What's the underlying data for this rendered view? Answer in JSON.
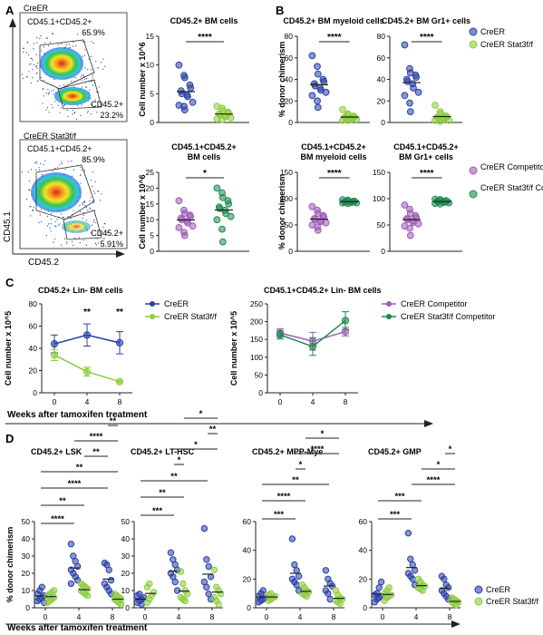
{
  "panels": {
    "A": "A",
    "B": "B",
    "C": "C",
    "D": "D"
  },
  "colors": {
    "creer": "#2940a8",
    "stat3": "#8ccc3c",
    "competitor_creer": "#9e5bb8",
    "competitor_stat3": "#1e8a4e"
  },
  "flow": {
    "x_axis_label": "CD45.2",
    "y_axis_label": "CD45.1",
    "plots": [
      {
        "title": "CreER",
        "gate_upper_label": "CD45.1+CD45.2+",
        "gate_upper_pct": "65.9%",
        "gate_lower_label": "CD45.2+",
        "gate_lower_pct": "23.2%"
      },
      {
        "title": "CreER Stat3f/f",
        "gate_upper_label": "CD45.1+CD45.2+",
        "gate_upper_pct": "85.9%",
        "gate_lower_label": "CD45.2+",
        "gate_lower_pct": "5.91%"
      }
    ]
  },
  "legends": {
    "B_top": [
      "CreER",
      "CreER Stat3f/f"
    ],
    "B_bottom": [
      "CreER Competitor",
      "CreER Stat3f/f Competitor"
    ],
    "C_left": [
      "CreER",
      "CreER Stat3f/f"
    ],
    "C_right": [
      "CreER Competitor",
      "CreER Stat3f/f Competitor"
    ],
    "D": [
      "CreER",
      "CreER Stat3f/f"
    ]
  },
  "panel_c_xlabel": "Weeks after tamoxifen treatment",
  "panel_d_xlabel": "Weeks after tamoxifen treatment",
  "chart_data": [
    {
      "id": "A1",
      "type": "scatter",
      "title": "CD45.2+ BM cells",
      "ylabel": "Cell number x 10^6",
      "ylim": [
        0,
        15
      ],
      "yticks": [
        0,
        5,
        10,
        15
      ],
      "categories": [
        "CreER",
        "CreER Stat3f/f"
      ],
      "series": [
        {
          "values": [
            10,
            8.2,
            7.8,
            6.5,
            6,
            5.5,
            5,
            4.8,
            4.5,
            3.5,
            3,
            2.8,
            2.2
          ]
        },
        {
          "values": [
            2.8,
            2.5,
            2,
            1.8,
            1.6,
            1.5,
            1.3,
            1.2,
            1,
            0.8,
            0.6,
            0.5
          ]
        }
      ],
      "significance": [
        "****"
      ]
    },
    {
      "id": "A2",
      "type": "scatter",
      "title": "CD45.1+CD45.2+ BM cells",
      "ylabel": "Cell number x 10^6",
      "ylim": [
        0,
        25
      ],
      "yticks": [
        0,
        5,
        10,
        15,
        20,
        25
      ],
      "categories": [
        "CreER Competitor",
        "CreER Stat3f/f Competitor"
      ],
      "series": [
        {
          "values": [
            16,
            13,
            12,
            11.5,
            11,
            10.5,
            10,
            9.5,
            9,
            8,
            7.5,
            6,
            5
          ]
        },
        {
          "values": [
            20,
            18.5,
            17,
            16,
            15,
            14,
            13.5,
            13,
            12,
            11,
            10,
            7,
            3
          ]
        }
      ],
      "significance": [
        "*"
      ]
    },
    {
      "id": "B1",
      "type": "scatter",
      "title": "CD45.2+ BM myeloid cells",
      "ylabel": "% donor chimerism",
      "ylim": [
        0,
        80
      ],
      "yticks": [
        0,
        20,
        40,
        60,
        80
      ],
      "categories": [
        "CreER",
        "CreER Stat3f/f"
      ],
      "series": [
        {
          "values": [
            62,
            52,
            45,
            40,
            38,
            36,
            34,
            32,
            30,
            28,
            25,
            20,
            14
          ]
        },
        {
          "values": [
            12,
            8,
            7,
            6,
            5,
            5,
            4,
            4,
            3,
            3,
            2,
            2
          ]
        }
      ],
      "significance": [
        "****"
      ]
    },
    {
      "id": "B2",
      "type": "scatter",
      "title": "CD45.2+ BM Gr1+ cells",
      "ylabel": "",
      "ylim": [
        0,
        80
      ],
      "yticks": [
        0,
        20,
        40,
        60,
        80
      ],
      "categories": [
        "CreER",
        "CreER Stat3f/f"
      ],
      "series": [
        {
          "values": [
            72,
            50,
            46,
            44,
            42,
            40,
            38,
            36,
            32,
            28,
            25,
            18,
            10
          ]
        },
        {
          "values": [
            16,
            10,
            8,
            6,
            5,
            5,
            4,
            4,
            3,
            2,
            2,
            1
          ]
        }
      ],
      "significance": [
        "****"
      ]
    },
    {
      "id": "B3",
      "type": "scatter",
      "title": "CD45.1+CD45.2+ BM myeloid cells",
      "ylabel": "% donor chimerism",
      "ylim": [
        0,
        150
      ],
      "yticks": [
        0,
        50,
        100,
        150
      ],
      "categories": [
        "CreER Competitor",
        "CreER Stat3f/f Competitor"
      ],
      "series": [
        {
          "values": [
            85,
            78,
            72,
            68,
            65,
            62,
            60,
            58,
            56,
            54,
            50,
            46,
            40
          ]
        },
        {
          "values": [
            98,
            97,
            96,
            95,
            95,
            94,
            94,
            93,
            93,
            92,
            92,
            91
          ]
        }
      ],
      "significance": [
        "****"
      ]
    },
    {
      "id": "B4",
      "type": "scatter",
      "title": "CD45.1+CD45.2+ BM Gr1+ cells",
      "ylabel": "",
      "ylim": [
        0,
        150
      ],
      "yticks": [
        0,
        50,
        100,
        150
      ],
      "categories": [
        "CreER Competitor",
        "CreER Stat3f/f Competitor"
      ],
      "series": [
        {
          "values": [
            88,
            80,
            72,
            68,
            64,
            62,
            60,
            58,
            55,
            52,
            48,
            44,
            30
          ]
        },
        {
          "values": [
            99,
            98,
            97,
            96,
            95,
            95,
            94,
            94,
            93,
            92,
            91,
            90
          ]
        }
      ],
      "significance": [
        "****"
      ]
    },
    {
      "id": "C1",
      "type": "line",
      "title": "CD45.2+ Lin- BM cells",
      "ylabel": "Cell number x 10^5",
      "xlabel": "",
      "ylim": [
        0,
        80
      ],
      "yticks": [
        0,
        20,
        40,
        60,
        80
      ],
      "x": [
        0,
        4,
        8
      ],
      "series": [
        {
          "name": "CreER",
          "values": [
            44,
            52,
            45
          ],
          "err": [
            8,
            10,
            10
          ]
        },
        {
          "name": "CreER Stat3f/f",
          "values": [
            34,
            19,
            10
          ],
          "err": [
            5,
            4,
            1
          ]
        }
      ],
      "significance": [
        "",
        "**",
        "**"
      ]
    },
    {
      "id": "C2",
      "type": "line",
      "title": "CD45.1+CD45.2+ Lin- BM cells",
      "ylabel": "Cell number x 10^5",
      "xlabel": "",
      "ylim": [
        0,
        250
      ],
      "yticks": [
        0,
        50,
        100,
        150,
        200,
        250
      ],
      "x": [
        0,
        4,
        8
      ],
      "series": [
        {
          "name": "CreER Competitor",
          "values": [
            168,
            145,
            172
          ],
          "err": [
            12,
            25,
            12
          ]
        },
        {
          "name": "CreER Stat3f/f Competitor",
          "values": [
            163,
            130,
            203
          ],
          "err": [
            12,
            25,
            25
          ]
        }
      ]
    },
    {
      "id": "D1",
      "type": "scatter",
      "title": "CD45.2+ LSK",
      "ylabel": "% donor chimerism",
      "ylim": [
        0,
        50
      ],
      "yticks": [
        0,
        10,
        20,
        30,
        40,
        50
      ],
      "x": [
        0,
        4,
        8
      ],
      "series": [
        {
          "name": "CreER",
          "values": [
            [
              4,
              5,
              6,
              7,
              8,
              10,
              12,
              3
            ],
            [
              37,
              30,
              27,
              24,
              22,
              20,
              18,
              16,
              14
            ],
            [
              26,
              25,
              22,
              16,
              14,
              12,
              10,
              8
            ]
          ]
        },
        {
          "name": "CreER Stat3f/f",
          "values": [
            [
              3,
              4,
              5,
              6,
              7,
              8,
              9,
              10
            ],
            [
              14,
              13,
              12,
              11,
              10,
              9,
              8,
              7
            ],
            [
              8,
              7,
              6,
              5,
              5,
              4,
              3,
              2
            ]
          ]
        }
      ],
      "significance": [
        "****",
        "**",
        "****",
        "**",
        "**",
        "****",
        "**"
      ]
    },
    {
      "id": "D2",
      "type": "scatter",
      "title": "CD45.2+ LT-HSC",
      "ylabel": "",
      "ylim": [
        0,
        50
      ],
      "yticks": [
        0,
        10,
        20,
        30,
        40,
        50
      ],
      "x": [
        0,
        4,
        8
      ],
      "series": [
        {
          "name": "CreER",
          "values": [
            [
              3,
              4,
              5,
              6,
              7,
              8,
              2
            ],
            [
              32,
              28,
              25,
              22,
              20,
              18,
              15,
              10
            ],
            [
              46,
              28,
              24,
              18,
              15,
              12,
              8,
              5
            ]
          ]
        },
        {
          "name": "CreER Stat3f/f",
          "values": [
            [
              3,
              5,
              7,
              9,
              12,
              14
            ],
            [
              21,
              14,
              10,
              8,
              6,
              5,
              4
            ],
            [
              22,
              12,
              10,
              8,
              6,
              4,
              2
            ]
          ]
        }
      ],
      "significance": [
        "***",
        "**",
        "**",
        "*",
        "*",
        "**",
        "*"
      ]
    },
    {
      "id": "D3",
      "type": "scatter",
      "title": "CD45.2+ MPP-Mye",
      "ylabel": "",
      "ylim": [
        0,
        60
      ],
      "yticks": [
        0,
        20,
        40,
        60
      ],
      "x": [
        0,
        4,
        8
      ],
      "series": [
        {
          "name": "CreER",
          "values": [
            [
              4,
              5,
              6,
              7,
              8,
              10,
              12
            ],
            [
              48,
              30,
              26,
              22,
              20,
              18,
              16,
              12
            ],
            [
              26,
              20,
              17,
              15,
              12,
              10,
              6
            ]
          ]
        },
        {
          "name": "CreER Stat3f/f",
          "values": [
            [
              5,
              6,
              7,
              8,
              9,
              10
            ],
            [
              16,
              14,
              12,
              11,
              10,
              9,
              8
            ],
            [
              12,
              9,
              7,
              6,
              5,
              4,
              3
            ]
          ]
        }
      ],
      "significance": [
        "***",
        "****",
        "**",
        "*",
        "****",
        "*"
      ]
    },
    {
      "id": "D4",
      "type": "scatter",
      "title": "CD45.2+ GMP",
      "ylabel": "",
      "ylim": [
        0,
        60
      ],
      "yticks": [
        0,
        20,
        40,
        60
      ],
      "x": [
        0,
        4,
        8
      ],
      "series": [
        {
          "name": "CreER",
          "values": [
            [
              4,
              6,
              7,
              8,
              9,
              10,
              14,
              18
            ],
            [
              52,
              34,
              30,
              26,
              24,
              22,
              20,
              16
            ],
            [
              22,
              20,
              16,
              14,
              12,
              10,
              8,
              6
            ]
          ]
        },
        {
          "name": "CreER Stat3f/f",
          "values": [
            [
              5,
              7,
              8,
              9,
              10,
              12,
              14
            ],
            [
              20,
              18,
              16,
              15,
              14,
              13,
              12
            ],
            [
              7,
              6,
              5,
              4,
              4,
              3,
              2
            ]
          ]
        }
      ],
      "significance": [
        "***",
        "***",
        "****",
        "*",
        "*"
      ]
    }
  ]
}
